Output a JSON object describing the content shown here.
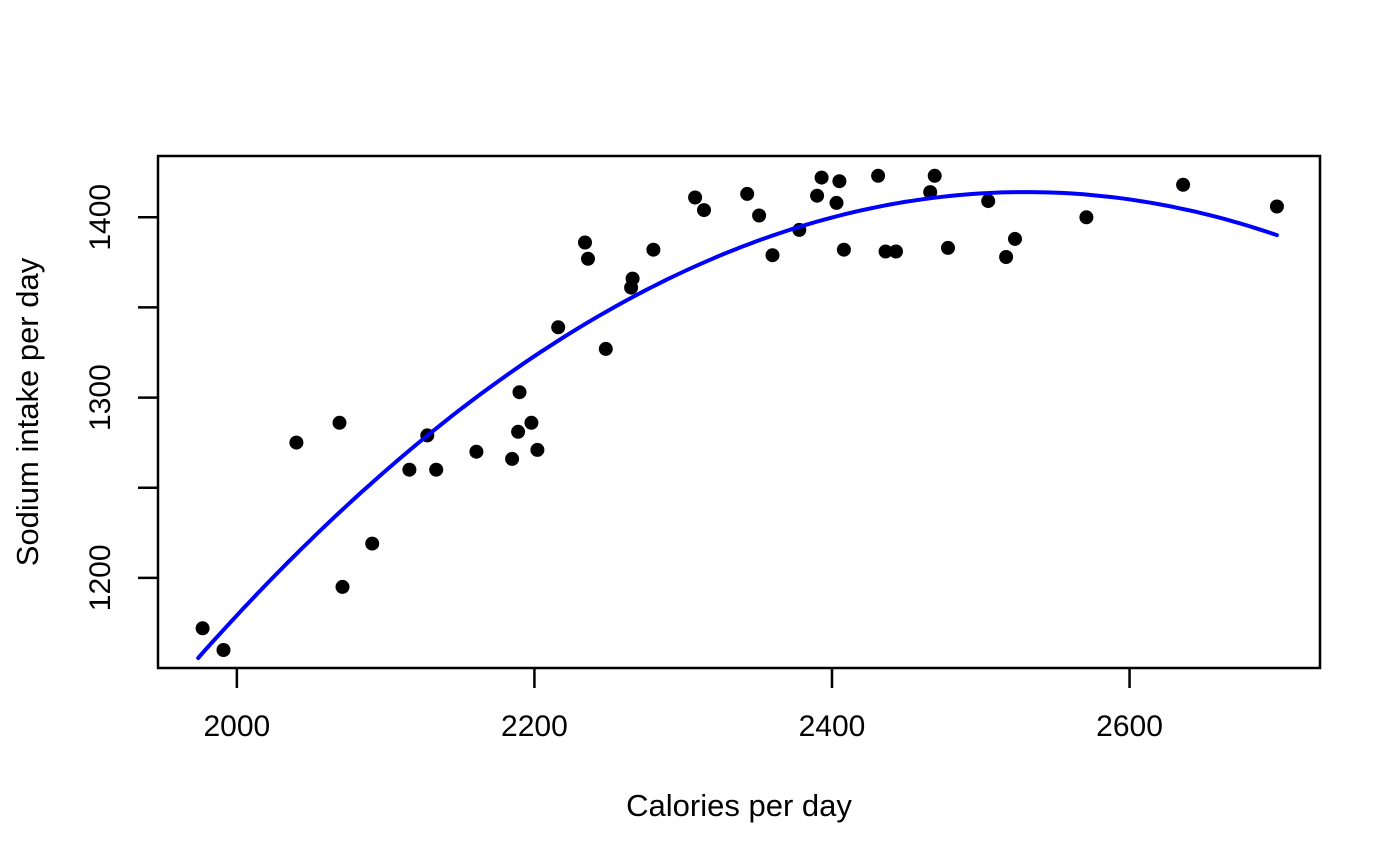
{
  "chart_data": {
    "type": "scatter",
    "xlabel": "Calories per day",
    "ylabel": "Sodium intake per day",
    "xlim": [
      1947,
      2728
    ],
    "ylim": [
      1150,
      1434
    ],
    "grid": false,
    "legend": "none",
    "point_color": "#000000",
    "curve_color": "#0000FF",
    "axis_color": "#000000",
    "background_color": "#ffffff",
    "x_ticks": [
      {
        "value": 2000,
        "label": "2000"
      },
      {
        "value": 2200,
        "label": "2200"
      },
      {
        "value": 2400,
        "label": "2400"
      },
      {
        "value": 2600,
        "label": "2600"
      }
    ],
    "y_ticks": [
      {
        "value": 1200,
        "label": "1200"
      },
      {
        "value": 1250,
        "label": ""
      },
      {
        "value": 1300,
        "label": "1300"
      },
      {
        "value": 1350,
        "label": ""
      },
      {
        "value": 1400,
        "label": "1400"
      }
    ],
    "points": [
      [
        1977,
        1172
      ],
      [
        1991,
        1160
      ],
      [
        2040,
        1275
      ],
      [
        2069,
        1286
      ],
      [
        2071,
        1195
      ],
      [
        2091,
        1219
      ],
      [
        2116,
        1260
      ],
      [
        2128,
        1279
      ],
      [
        2134,
        1260
      ],
      [
        2161,
        1270
      ],
      [
        2185,
        1266
      ],
      [
        2189,
        1281
      ],
      [
        2190,
        1303
      ],
      [
        2198,
        1286
      ],
      [
        2202,
        1271
      ],
      [
        2216,
        1339
      ],
      [
        2234,
        1386
      ],
      [
        2236,
        1377
      ],
      [
        2248,
        1327
      ],
      [
        2265,
        1361
      ],
      [
        2266,
        1366
      ],
      [
        2280,
        1382
      ],
      [
        2308,
        1411
      ],
      [
        2314,
        1404
      ],
      [
        2343,
        1413
      ],
      [
        2351,
        1401
      ],
      [
        2360,
        1379
      ],
      [
        2378,
        1393
      ],
      [
        2390,
        1412
      ],
      [
        2393,
        1422
      ],
      [
        2403,
        1408
      ],
      [
        2405,
        1420
      ],
      [
        2408,
        1382
      ],
      [
        2431,
        1423
      ],
      [
        2436,
        1381
      ],
      [
        2443,
        1381
      ],
      [
        2466,
        1414
      ],
      [
        2469,
        1423
      ],
      [
        2478,
        1383
      ],
      [
        2505,
        1409
      ],
      [
        2517,
        1378
      ],
      [
        2523,
        1388
      ],
      [
        2571,
        1400
      ],
      [
        2636,
        1418
      ],
      [
        2699,
        1406
      ]
    ],
    "fit_curve": {
      "type": "quadratic",
      "vertex_x": 2530,
      "vertex_y": 1414,
      "a": -0.000836,
      "x_start": 1974,
      "x_end": 2699
    }
  }
}
